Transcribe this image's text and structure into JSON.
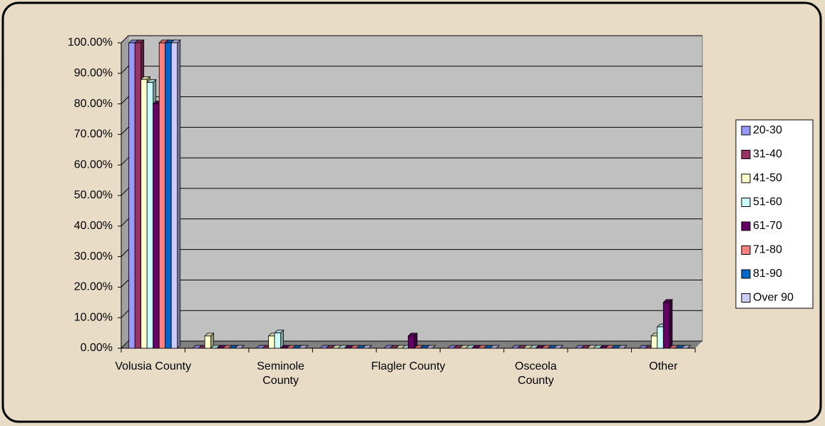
{
  "chart_data": {
    "type": "bar",
    "categories": [
      "Volusia County",
      null,
      "Seminole County",
      null,
      "Flagler County",
      null,
      "Osceola County",
      null,
      "Other"
    ],
    "series": [
      {
        "name": "20-30",
        "color": "#9999ff",
        "values": [
          100,
          0,
          0,
          0,
          0,
          0,
          0,
          0,
          0
        ]
      },
      {
        "name": "31-40",
        "color": "#993366",
        "values": [
          100,
          0,
          0,
          0,
          0,
          0,
          0,
          0,
          0
        ]
      },
      {
        "name": "41-50",
        "color": "#ffffcc",
        "values": [
          88,
          4,
          4,
          0,
          0,
          0,
          0,
          0,
          4
        ]
      },
      {
        "name": "51-60",
        "color": "#ccffff",
        "values": [
          87,
          0,
          5,
          0,
          0,
          0,
          0,
          0,
          7
        ]
      },
      {
        "name": "61-70",
        "color": "#660066",
        "values": [
          80,
          0,
          0,
          0,
          4,
          0,
          0,
          0,
          15
        ]
      },
      {
        "name": "71-80",
        "color": "#ff8080",
        "values": [
          100,
          0,
          0,
          0,
          0,
          0,
          0,
          0,
          0
        ]
      },
      {
        "name": "81-90",
        "color": "#0066cc",
        "values": [
          100,
          0,
          0,
          0,
          0,
          0,
          0,
          0,
          0
        ]
      },
      {
        "name": "Over 90",
        "color": "#ccccff",
        "values": [
          100,
          0,
          0,
          0,
          0,
          0,
          0,
          0,
          0
        ]
      }
    ],
    "ylim": [
      0,
      100
    ],
    "yticks": [
      {
        "value": 0,
        "label": "0.00%"
      },
      {
        "value": 10,
        "label": "10.00%"
      },
      {
        "value": 20,
        "label": "20.00%"
      },
      {
        "value": 30,
        "label": "30.00%"
      },
      {
        "value": 40,
        "label": "40.00%"
      },
      {
        "value": 50,
        "label": "50.00%"
      },
      {
        "value": 60,
        "label": "60.00%"
      },
      {
        "value": 70,
        "label": "70.00%"
      },
      {
        "value": 80,
        "label": "80.00%"
      },
      {
        "value": 90,
        "label": "90.00%"
      },
      {
        "value": 100,
        "label": "100.00%"
      }
    ],
    "grid": true,
    "legend": "right"
  }
}
